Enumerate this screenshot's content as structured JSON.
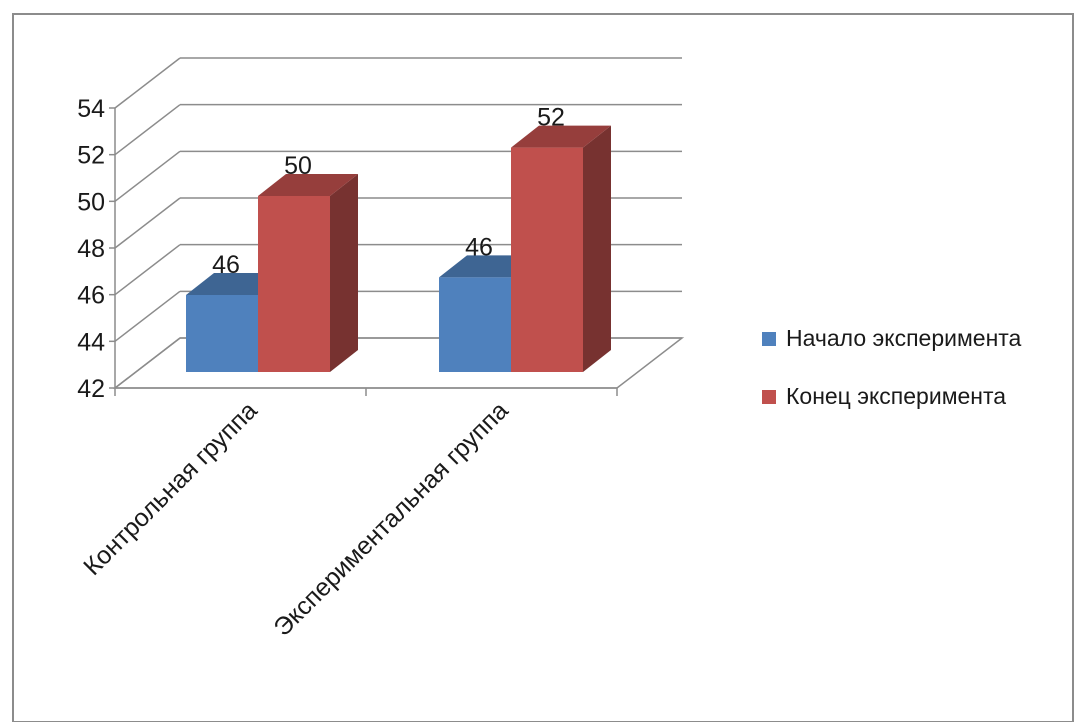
{
  "chart_data": {
    "type": "bar",
    "title": "",
    "xlabel": "",
    "ylabel": "",
    "categories": [
      "Контрольная группа",
      "Экспериментальная группа"
    ],
    "series": [
      {
        "name": "Начало эксперимента",
        "values": [
          46,
          46
        ],
        "display_values": [
          45.5,
          46.3
        ],
        "color": "#4F81BD"
      },
      {
        "name": "Конец эксперимента",
        "values": [
          50,
          52
        ],
        "display_values": [
          50,
          52.2
        ],
        "color": "#C0504D"
      }
    ],
    "ylim": [
      42,
      54
    ],
    "yticks": [
      42,
      44,
      46,
      48,
      50,
      52,
      54
    ],
    "grid": true,
    "three_d": true,
    "legend_position": "right"
  }
}
